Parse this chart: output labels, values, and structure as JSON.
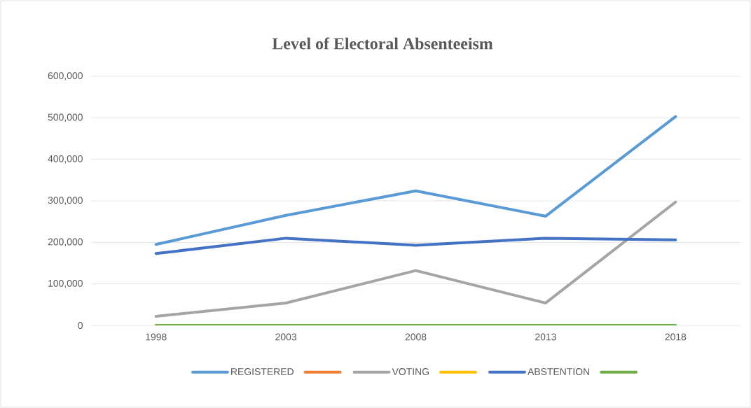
{
  "chart_data": {
    "type": "line",
    "title": "Level of Electoral Absenteeism",
    "categories": [
      "1998",
      "2003",
      "2008",
      "2013",
      "2018"
    ],
    "series": [
      {
        "name": "REGISTERED",
        "color": "#5b9bd5",
        "values": [
          195000,
          265000,
          324000,
          263000,
          503000
        ]
      },
      {
        "color": "#ed7d31",
        "values": [
          null,
          null,
          null,
          null,
          null
        ]
      },
      {
        "name": "VOTING",
        "color": "#a5a5a5",
        "values": [
          22000,
          54000,
          132000,
          54000,
          297000
        ]
      },
      {
        "color": "#ffc000",
        "values": [
          null,
          null,
          null,
          null,
          null
        ]
      },
      {
        "name": "ABSTENTION",
        "color": "#4472c4",
        "values": [
          173000,
          210000,
          193000,
          210000,
          206000
        ]
      },
      {
        "color": "#70ad47",
        "values": [
          0,
          0,
          0,
          0,
          0
        ]
      }
    ],
    "ylim": [
      0,
      600000
    ],
    "yticks": [
      0,
      {
        "value": 100000,
        "label": "100,000"
      },
      {
        "value": 200000,
        "label": "200,000"
      },
      {
        "value": 300000,
        "label": "300,000"
      },
      {
        "value": 400000,
        "label": "400,000"
      },
      {
        "value": 500000,
        "label": "500,000"
      },
      {
        "value": 600000,
        "label": "600,000"
      }
    ],
    "grid": "y",
    "legend": "bottom",
    "marker": "none",
    "line_style": "solid"
  }
}
